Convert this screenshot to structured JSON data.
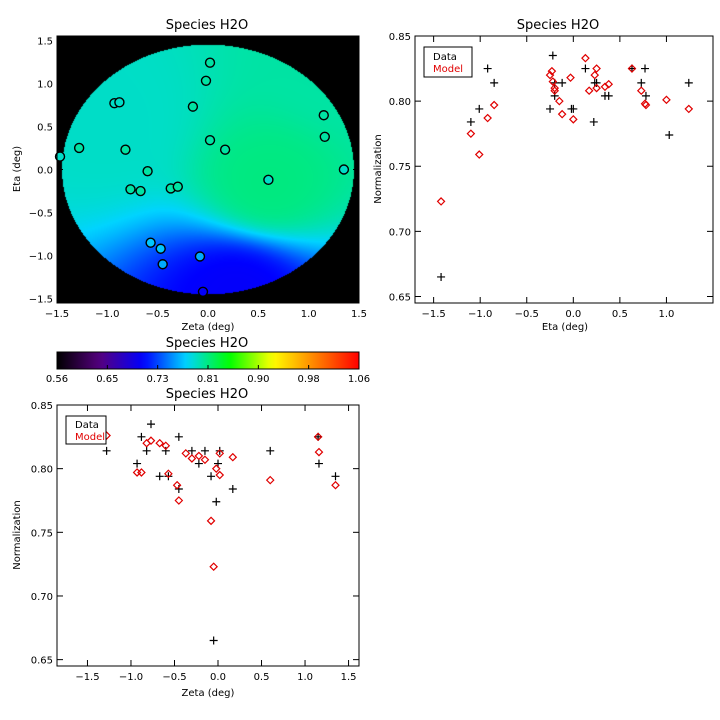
{
  "chart_data": [
    {
      "id": "map",
      "type": "heatmap",
      "title": "Species H2O",
      "xlabel": "Zeta (deg)",
      "ylabel": "Eta (deg)",
      "xlim": [
        -1.5,
        1.5
      ],
      "ylim": [
        -1.55,
        1.55
      ],
      "xticks": [
        -1.5,
        -1.0,
        -0.5,
        0.0,
        0.5,
        1.0,
        1.5
      ],
      "xtick_labels": [
        "−1.5",
        "−1.0",
        "−0.5",
        "0.0",
        "0.5",
        "1.0",
        "1.5"
      ],
      "yticks": [
        -1.5,
        -1.0,
        -0.5,
        0.0,
        0.5,
        1.0,
        1.5
      ],
      "ytick_labels": [
        "−1.5",
        "−1.0",
        "−0.5",
        "0.0",
        "0.5",
        "1.0",
        "1.5"
      ],
      "field_radius": 1.45,
      "background": "#000000",
      "gradient": [
        {
          "zeta": -1.0,
          "eta": 0.5,
          "value": 0.79
        },
        {
          "zeta": 0.6,
          "eta": -0.2,
          "value": 0.81
        },
        {
          "zeta": 0.3,
          "eta": -1.4,
          "value": 0.7
        },
        {
          "zeta": 1.3,
          "eta": 1.2,
          "value": 0.8
        }
      ],
      "points": [
        {
          "zeta": -1.47,
          "eta": 0.15,
          "value": 0.79
        },
        {
          "zeta": -1.28,
          "eta": 0.25,
          "value": 0.8
        },
        {
          "zeta": -0.93,
          "eta": 0.77,
          "value": 0.79
        },
        {
          "zeta": -0.88,
          "eta": 0.78,
          "value": 0.79
        },
        {
          "zeta": -0.82,
          "eta": 0.23,
          "value": 0.8
        },
        {
          "zeta": -0.77,
          "eta": -0.23,
          "value": 0.8
        },
        {
          "zeta": -0.67,
          "eta": -0.25,
          "value": 0.8
        },
        {
          "zeta": -0.6,
          "eta": -0.02,
          "value": 0.8
        },
        {
          "zeta": -0.57,
          "eta": -0.85,
          "value": 0.77
        },
        {
          "zeta": -0.47,
          "eta": -0.92,
          "value": 0.77
        },
        {
          "zeta": -0.45,
          "eta": -1.1,
          "value": 0.76
        },
        {
          "zeta": -0.37,
          "eta": -0.22,
          "value": 0.8
        },
        {
          "zeta": -0.3,
          "eta": -0.2,
          "value": 0.8
        },
        {
          "zeta": -0.15,
          "eta": 0.73,
          "value": 0.8
        },
        {
          "zeta": -0.08,
          "eta": -1.01,
          "value": 0.76
        },
        {
          "zeta": -0.05,
          "eta": -1.42,
          "value": 0.7
        },
        {
          "zeta": -0.02,
          "eta": 1.03,
          "value": 0.8
        },
        {
          "zeta": 0.02,
          "eta": 1.24,
          "value": 0.8
        },
        {
          "zeta": 0.02,
          "eta": 0.34,
          "value": 0.8
        },
        {
          "zeta": 0.17,
          "eta": 0.23,
          "value": 0.8
        },
        {
          "zeta": 0.6,
          "eta": -0.12,
          "value": 0.79
        },
        {
          "zeta": 1.15,
          "eta": 0.63,
          "value": 0.8
        },
        {
          "zeta": 1.16,
          "eta": 0.38,
          "value": 0.8
        },
        {
          "zeta": 1.35,
          "eta": 0.0,
          "value": 0.79
        }
      ]
    },
    {
      "id": "colorbar",
      "type": "heatmap",
      "title": "Species H2O",
      "range": [
        0.56,
        1.06
      ],
      "tick_labels": [
        "0.56",
        "0.65",
        "0.73",
        "0.81",
        "0.90",
        "0.98",
        "1.06"
      ],
      "colormap": [
        "#000000",
        "#55007f",
        "#0000ff",
        "#00d4ff",
        "#00ff00",
        "#ffff00",
        "#ff8000",
        "#ff0000"
      ]
    },
    {
      "id": "norm_vs_eta",
      "type": "scatter",
      "title": "Species H2O",
      "xlabel": "Eta (deg)",
      "ylabel": "Normalization",
      "xlim": [
        -1.7,
        1.5
      ],
      "ylim": [
        0.645,
        0.85
      ],
      "xticks": [
        -1.5,
        -1.0,
        -0.5,
        0.0,
        0.5,
        1.0
      ],
      "xtick_labels": [
        "−1.5",
        "−1.0",
        "−0.5",
        "0.0",
        "0.5",
        "1.0"
      ],
      "yticks": [
        0.65,
        0.7,
        0.75,
        0.8,
        0.85
      ],
      "ytick_labels": [
        "0.65",
        "0.70",
        "0.75",
        "0.80",
        "0.85"
      ],
      "legend": [
        "Data",
        "Model"
      ],
      "series": [
        {
          "name": "Data",
          "marker": "plus",
          "color": "#000000",
          "points": [
            [
              -1.42,
              0.665
            ],
            [
              -1.1,
              0.784
            ],
            [
              -1.01,
              0.794
            ],
            [
              -0.92,
              0.825
            ],
            [
              -0.85,
              0.814
            ],
            [
              -0.25,
              0.794
            ],
            [
              -0.22,
              0.835
            ],
            [
              -0.2,
              0.814
            ],
            [
              -0.2,
              0.804
            ],
            [
              -0.12,
              0.814
            ],
            [
              -0.02,
              0.794
            ],
            [
              0.0,
              0.794
            ],
            [
              0.13,
              0.825
            ],
            [
              0.22,
              0.784
            ],
            [
              0.23,
              0.814
            ],
            [
              0.25,
              0.814
            ],
            [
              0.34,
              0.804
            ],
            [
              0.38,
              0.804
            ],
            [
              0.63,
              0.825
            ],
            [
              0.73,
              0.814
            ],
            [
              0.77,
              0.825
            ],
            [
              0.78,
              0.804
            ],
            [
              1.03,
              0.774
            ],
            [
              1.24,
              0.814
            ]
          ]
        },
        {
          "name": "Model",
          "marker": "diamond",
          "color": "#e00000",
          "points": [
            [
              -1.42,
              0.723
            ],
            [
              -1.1,
              0.775
            ],
            [
              -1.01,
              0.759
            ],
            [
              -0.92,
              0.787
            ],
            [
              -0.85,
              0.797
            ],
            [
              -0.25,
              0.82
            ],
            [
              -0.23,
              0.823
            ],
            [
              -0.22,
              0.815
            ],
            [
              -0.2,
              0.81
            ],
            [
              -0.2,
              0.808
            ],
            [
              -0.15,
              0.8
            ],
            [
              -0.12,
              0.79
            ],
            [
              -0.03,
              0.818
            ],
            [
              0.0,
              0.786
            ],
            [
              0.13,
              0.833
            ],
            [
              0.17,
              0.808
            ],
            [
              0.23,
              0.82
            ],
            [
              0.25,
              0.825
            ],
            [
              0.25,
              0.81
            ],
            [
              0.34,
              0.811
            ],
            [
              0.38,
              0.813
            ],
            [
              0.63,
              0.825
            ],
            [
              0.73,
              0.808
            ],
            [
              0.77,
              0.798
            ],
            [
              0.78,
              0.797
            ],
            [
              1.0,
              0.801
            ],
            [
              1.24,
              0.794
            ]
          ]
        }
      ]
    },
    {
      "id": "norm_vs_zeta",
      "type": "scatter",
      "title": "Species H2O",
      "xlabel": "Zeta (deg)",
      "ylabel": "Normalization",
      "xlim": [
        -1.85,
        1.62
      ],
      "ylim": [
        0.645,
        0.85
      ],
      "xticks": [
        -1.5,
        -1.0,
        -0.5,
        0.0,
        0.5,
        1.0,
        1.5
      ],
      "xtick_labels": [
        "−1.5",
        "−1.0",
        "−0.5",
        "0.0",
        "0.5",
        "1.0",
        "1.5"
      ],
      "yticks": [
        0.65,
        0.7,
        0.75,
        0.8,
        0.85
      ],
      "ytick_labels": [
        "0.65",
        "0.70",
        "0.75",
        "0.80",
        "0.85"
      ],
      "legend": [
        "Data",
        "Model"
      ],
      "series": [
        {
          "name": "Data",
          "marker": "plus",
          "color": "#000000",
          "points": [
            [
              -1.28,
              0.814
            ],
            [
              -0.93,
              0.804
            ],
            [
              -0.88,
              0.825
            ],
            [
              -0.82,
              0.814
            ],
            [
              -0.77,
              0.835
            ],
            [
              -0.67,
              0.794
            ],
            [
              -0.6,
              0.814
            ],
            [
              -0.57,
              0.794
            ],
            [
              -0.45,
              0.825
            ],
            [
              -0.45,
              0.784
            ],
            [
              -0.3,
              0.814
            ],
            [
              -0.22,
              0.804
            ],
            [
              -0.15,
              0.814
            ],
            [
              -0.08,
              0.794
            ],
            [
              -0.05,
              0.665
            ],
            [
              -0.02,
              0.774
            ],
            [
              0.0,
              0.804
            ],
            [
              0.02,
              0.814
            ],
            [
              0.17,
              0.784
            ],
            [
              0.6,
              0.814
            ],
            [
              1.15,
              0.825
            ],
            [
              1.16,
              0.804
            ],
            [
              1.35,
              0.794
            ]
          ]
        },
        {
          "name": "Model",
          "marker": "diamond",
          "color": "#e00000",
          "points": [
            [
              -1.28,
              0.826
            ],
            [
              -0.93,
              0.797
            ],
            [
              -0.88,
              0.797
            ],
            [
              -0.82,
              0.82
            ],
            [
              -0.77,
              0.822
            ],
            [
              -0.67,
              0.82
            ],
            [
              -0.6,
              0.818
            ],
            [
              -0.57,
              0.796
            ],
            [
              -0.47,
              0.787
            ],
            [
              -0.45,
              0.775
            ],
            [
              -0.37,
              0.812
            ],
            [
              -0.3,
              0.808
            ],
            [
              -0.22,
              0.81
            ],
            [
              -0.15,
              0.807
            ],
            [
              -0.08,
              0.759
            ],
            [
              -0.05,
              0.723
            ],
            [
              -0.02,
              0.8
            ],
            [
              0.02,
              0.812
            ],
            [
              0.02,
              0.795
            ],
            [
              0.17,
              0.809
            ],
            [
              0.6,
              0.791
            ],
            [
              1.15,
              0.825
            ],
            [
              1.16,
              0.813
            ],
            [
              1.35,
              0.787
            ]
          ]
        }
      ]
    }
  ]
}
